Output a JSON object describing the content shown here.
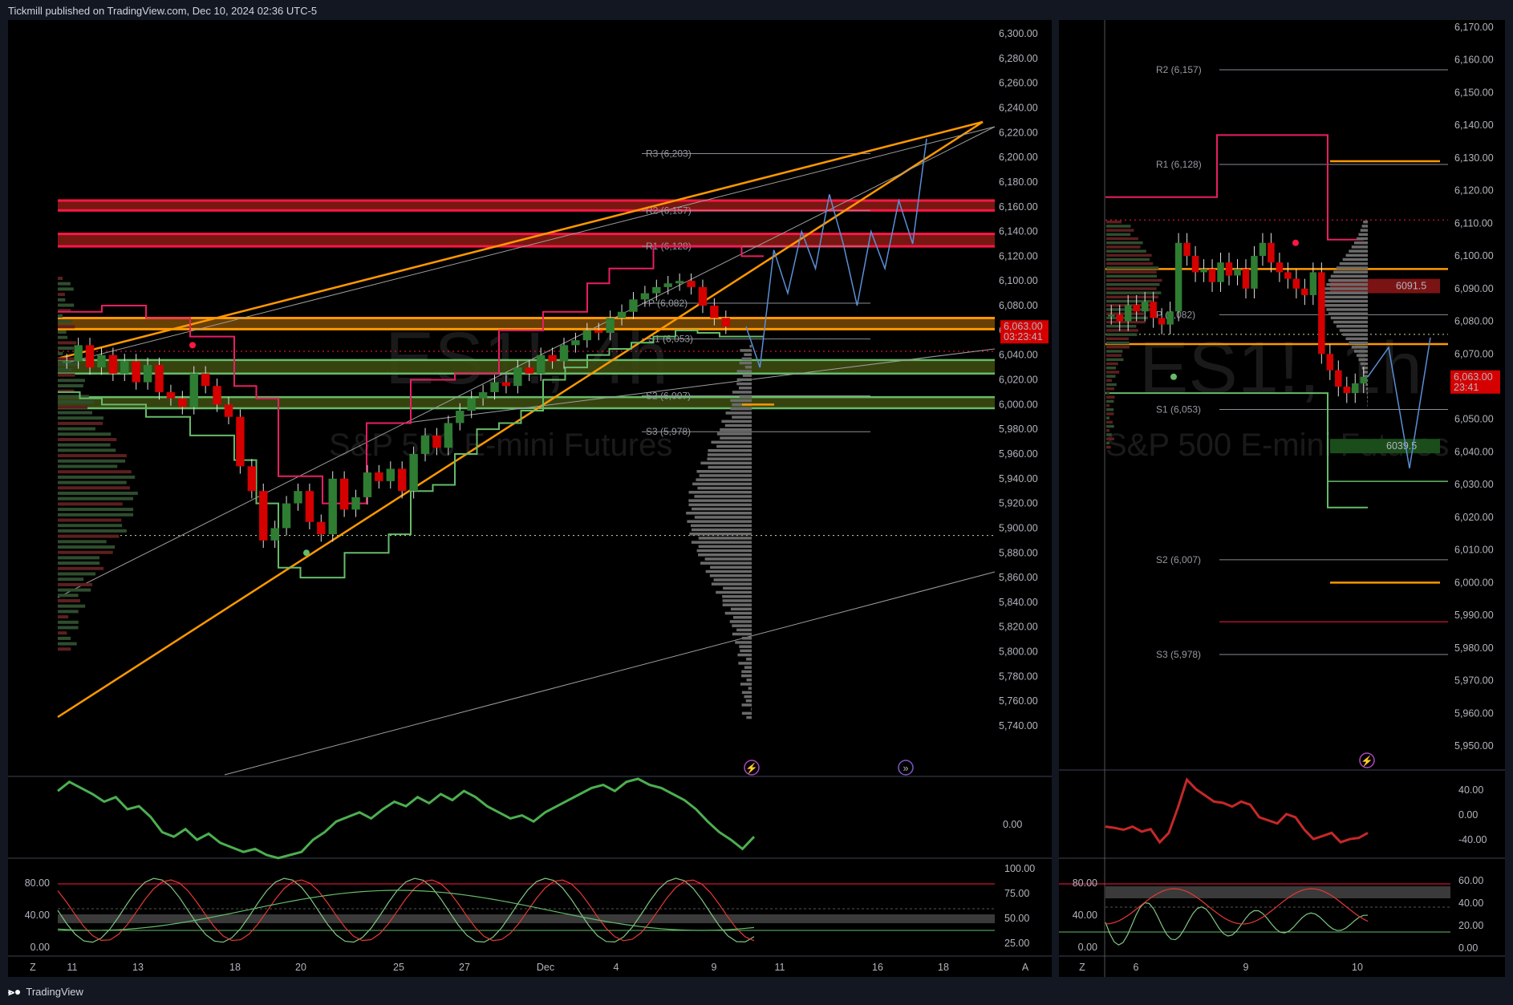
{
  "header": {
    "publisher": "Tickmill published on TradingView.com, Dec 10, 2024 02:36 UTC-5"
  },
  "footer": {
    "logo_icon": "tradingview-logo-icon",
    "brand": "TradingView"
  },
  "colors": {
    "background": "#131722",
    "pane": "#000000",
    "border": "#2a2e39",
    "up": "#2e7d32",
    "down": "#d50000",
    "resistance": "#ff1744",
    "support": "#66bb6a",
    "orange": "#ff9800",
    "projection": "#5b8fd6",
    "pink": "#e91e63"
  },
  "chart_data": [
    {
      "type": "line",
      "name": "ES1!, 4h",
      "watermark": "ES1!, 4h",
      "watermark_sub": "S&P 500 E-mini Futures",
      "x_ticks": [
        "11",
        "13",
        "18",
        "20",
        "25",
        "27",
        "Dec",
        "4",
        "9",
        "11",
        "16",
        "18"
      ],
      "y_ticks": [
        "6,300.00",
        "6,280.00",
        "6,260.00",
        "6,240.00",
        "6,220.00",
        "6,200.00",
        "6,180.00",
        "6,160.00",
        "6,140.00",
        "6,120.00",
        "6,100.00",
        "6,080.00",
        "6,060.00",
        "6,040.00",
        "6,020.00",
        "6,000.00",
        "5,980.00",
        "5,960.00",
        "5,940.00",
        "5,920.00",
        "5,900.00",
        "5,880.00",
        "5,860.00",
        "5,840.00",
        "5,820.00",
        "5,800.00",
        "5,780.00",
        "5,760.00",
        "5,740.00"
      ],
      "ylim": [
        5735,
        6305
      ],
      "last_price": "6,063.00",
      "countdown": "03:23:41",
      "pivots": [
        {
          "label": "R3 (6,203)",
          "value": 6203
        },
        {
          "label": "R2 (6,157)",
          "value": 6157
        },
        {
          "label": "R1 (6,128)",
          "value": 6128
        },
        {
          "label": "P (6,082)",
          "value": 6082
        },
        {
          "label": "S1 (6,053)",
          "value": 6053
        },
        {
          "label": "S2 (6,007)",
          "value": 6007
        },
        {
          "label": "S3 (5,978)",
          "value": 5978
        }
      ],
      "resistance_zones": [
        [
          6157,
          6165
        ],
        [
          6128,
          6138
        ]
      ],
      "orange_zones": [
        [
          6061,
          6070
        ]
      ],
      "support_zones": [
        [
          6025,
          6036
        ],
        [
          5997,
          6006
        ]
      ],
      "dotted_levels": [
        6043,
        5894
      ],
      "close_series": [
        6035,
        6048,
        6030,
        6040,
        6025,
        6035,
        6018,
        6032,
        6010,
        6005,
        5998,
        6025,
        6015,
        6000,
        5990,
        5950,
        5930,
        5890,
        5900,
        5920,
        5930,
        5905,
        5895,
        5940,
        5915,
        5925,
        5945,
        5938,
        5948,
        5930,
        5960,
        5975,
        5965,
        5985,
        5995,
        6005,
        6010,
        6018,
        6015,
        6030,
        6025,
        6040,
        6035,
        6048,
        6052,
        6060,
        6058,
        6070,
        6075,
        6085,
        6090,
        6095,
        6098,
        6100,
        6095,
        6080,
        6070,
        6063
      ],
      "projection": [
        6063,
        6030,
        6125,
        6090,
        6140,
        6110,
        6170,
        6130,
        6080,
        6140,
        6110,
        6165,
        6130,
        6215
      ]
    },
    {
      "type": "line",
      "name": "ES1!, 1h",
      "watermark": "ES1!, 1h",
      "watermark_sub": "S&P 500 E-mini Futures",
      "x_ticks": [
        "6",
        "9",
        "10"
      ],
      "y_ticks": [
        "6,170.00",
        "6,160.00",
        "6,150.00",
        "6,140.00",
        "6,130.00",
        "6,120.00",
        "6,110.00",
        "6,100.00",
        "6,090.00",
        "6,080.00",
        "6,070.00",
        "6,060.00",
        "6,050.00",
        "6,040.00",
        "6,030.00",
        "6,020.00",
        "6,010.00",
        "6,000.00",
        "5,990.00",
        "5,980.00",
        "5,970.00",
        "5,960.00",
        "5,950.00"
      ],
      "ylim": [
        5945,
        6172
      ],
      "last_price": "6,063.00",
      "countdown": "23:41",
      "pivots": [
        {
          "label": "R2 (6,157)",
          "value": 6157
        },
        {
          "label": "R1 (6,128)",
          "value": 6128
        },
        {
          "label": "P (6,082)",
          "value": 6082
        },
        {
          "label": "S1 (6,053)",
          "value": 6053
        },
        {
          "label": "S2 (6,007)",
          "value": 6007
        },
        {
          "label": "S3 (5,978)",
          "value": 5978
        }
      ],
      "zone_labels": [
        "6091.5",
        "6039.5"
      ],
      "close_series": [
        6082,
        6080,
        6085,
        6083,
        6086,
        6081,
        6079,
        6083,
        6104,
        6100,
        6095,
        6096,
        6092,
        6098,
        6094,
        6096,
        6090,
        6100,
        6104,
        6098,
        6095,
        6093,
        6090,
        6088,
        6095,
        6070,
        6065,
        6060,
        6058,
        6061,
        6063
      ],
      "projection": [
        6063,
        6072,
        6035,
        6075
      ]
    },
    {
      "type": "line",
      "name": "Oscillator (4h)",
      "y_ticks": [
        "0.00"
      ],
      "values": [
        22,
        28,
        24,
        20,
        15,
        18,
        10,
        12,
        5,
        -5,
        -8,
        -3,
        -10,
        -6,
        -12,
        -15,
        -18,
        -16,
        -20,
        -22,
        -20,
        -18,
        -10,
        -5,
        2,
        5,
        8,
        4,
        10,
        15,
        12,
        18,
        14,
        20,
        16,
        22,
        18,
        12,
        8,
        4,
        6,
        2,
        8,
        12,
        16,
        20,
        24,
        26,
        22,
        28,
        30,
        26,
        24,
        20,
        16,
        10,
        2,
        -5,
        -10,
        -16,
        -8
      ]
    },
    {
      "type": "line",
      "name": "Oscillator (1h)",
      "y_ticks": [
        "40.00",
        "0.00",
        "-40.00"
      ],
      "values": [
        -20,
        -22,
        -25,
        -20,
        -28,
        -24,
        -45,
        -30,
        10,
        55,
        40,
        30,
        20,
        18,
        12,
        20,
        15,
        -5,
        -10,
        -15,
        0,
        -5,
        -25,
        -40,
        -35,
        -30,
        -45,
        -40,
        -38,
        -30
      ]
    },
    {
      "type": "line",
      "name": "Stochastic (4h)",
      "y_ticks_left": [
        "80.00",
        "40.00",
        "0.00"
      ],
      "y_ticks_right": [
        "100.00",
        "75.00",
        "50.00",
        "25.00"
      ]
    },
    {
      "type": "line",
      "name": "Stochastic (1h)",
      "y_ticks_left": [
        "80.00",
        "40.00",
        "0.00"
      ],
      "y_ticks_right": [
        "60.00",
        "40.00",
        "20.00",
        "0.00"
      ]
    }
  ],
  "icons": {
    "zoom_left": "Z",
    "auto_left": "A",
    "zoom_right": "Z",
    "lightning_icon": "lightning-icon",
    "forward_icon": "forward-icon"
  }
}
